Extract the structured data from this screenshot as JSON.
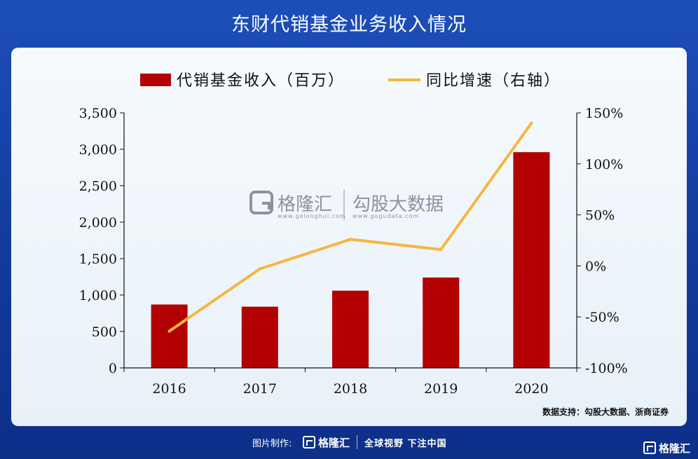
{
  "page": {
    "title": "东财代销基金业务收入情况",
    "source": "数据支持：勾股大数据、浙商证券",
    "footer_made": "图片制作:",
    "footer_logo": "格隆汇",
    "footer_slogan": "全球视野 下注中国",
    "corner_logo": "格隆汇"
  },
  "watermark": {
    "logo_text": "格隆汇",
    "logo_url": "www.gelonghui.com",
    "brand_text": "勾股大数据",
    "brand_url": "www.gogudata.com"
  },
  "colors": {
    "bar": "#b30000",
    "line": "#f5b642",
    "background": "#1a46ac"
  },
  "chart_data": {
    "type": "bar",
    "categories": [
      "2016",
      "2017",
      "2018",
      "2019",
      "2020"
    ],
    "series": [
      {
        "name": "代销基金收入（百万）",
        "type": "bar",
        "axis": "left",
        "values": [
          870,
          840,
          1060,
          1240,
          2960
        ]
      },
      {
        "name": "同比增速（右轴）",
        "type": "line",
        "axis": "right",
        "values": [
          -64,
          -3,
          26,
          16,
          140
        ]
      }
    ],
    "left_axis": {
      "min": 0,
      "max": 3500,
      "ticks": [
        "0",
        "500",
        "1,000",
        "1,500",
        "2,000",
        "2,500",
        "3,000",
        "3,500"
      ]
    },
    "right_axis": {
      "min": -100,
      "max": 150,
      "ticks": [
        "-100%",
        "-50%",
        "0%",
        "50%",
        "100%",
        "150%"
      ],
      "values": [
        -100,
        -50,
        0,
        50,
        100,
        150
      ]
    },
    "legend_position": "top",
    "grid": false
  }
}
